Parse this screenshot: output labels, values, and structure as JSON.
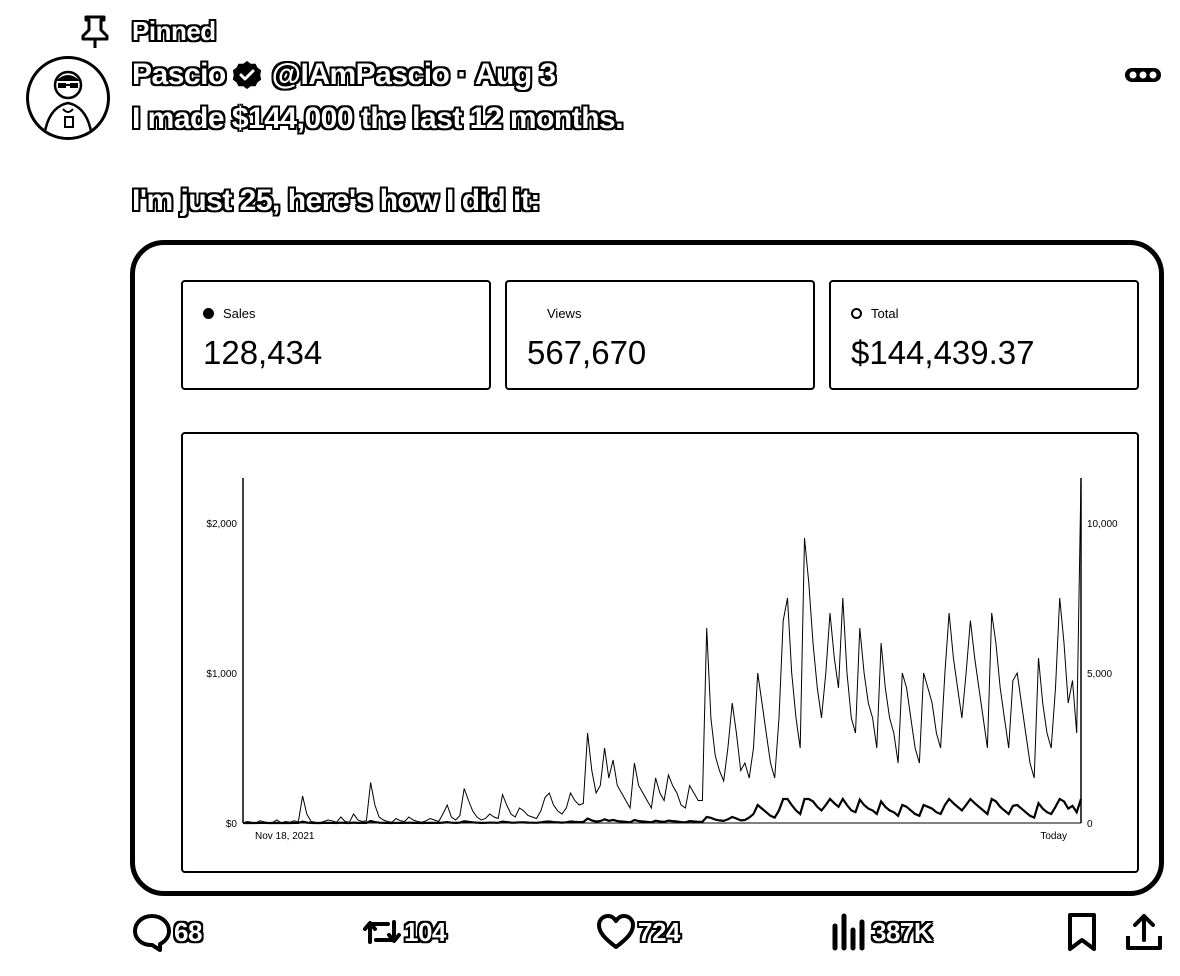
{
  "header": {
    "pinned_label": "Pinned"
  },
  "author": {
    "name": "Pascio",
    "handle": "@IAmPascio",
    "separator": "·",
    "date": "Aug 3",
    "verified": true
  },
  "tweet": {
    "line1": "I made $144,000 the last 12 months.",
    "line2": "I'm just 25, here's how I did it:"
  },
  "stats": [
    {
      "label": "Sales",
      "value": "128,434",
      "marker": "filled-dot"
    },
    {
      "label": "Views",
      "value": "567,670",
      "marker": "none"
    },
    {
      "label": "Total",
      "value": "$144,439.37",
      "marker": "hollow-dot"
    }
  ],
  "chart_data": {
    "type": "line",
    "x_start_label": "Nov 18, 2021",
    "x_end_label": "Today",
    "y_left_ticks": [
      "$0",
      "$1,000",
      "$2,000"
    ],
    "y_right_ticks": [
      "0",
      "5,000",
      "10,000"
    ],
    "ylim_left": [
      0,
      2300
    ],
    "ylim_right": [
      0,
      11500
    ],
    "grid": false,
    "series": [
      {
        "values": [
          0,
          10,
          5,
          0,
          15,
          8,
          0,
          5,
          20,
          0,
          10,
          5,
          15,
          8,
          180,
          60,
          10,
          5,
          0,
          10,
          20,
          15,
          5,
          40,
          10,
          5,
          60,
          20,
          10,
          15,
          270,
          120,
          40,
          20,
          10,
          5,
          30,
          15,
          10,
          40,
          20,
          10,
          5,
          15,
          30,
          20,
          10,
          60,
          120,
          40,
          20,
          50,
          230,
          150,
          80,
          40,
          20,
          30,
          60,
          40,
          30,
          190,
          120,
          60,
          40,
          100,
          80,
          50,
          40,
          30,
          80,
          170,
          200,
          120,
          80,
          60,
          100,
          200,
          150,
          120,
          130,
          600,
          350,
          200,
          250,
          500,
          300,
          420,
          250,
          200,
          150,
          100,
          400,
          250,
          200,
          150,
          100,
          300,
          200,
          150,
          320,
          250,
          200,
          120,
          100,
          250,
          200,
          150,
          150,
          1300,
          700,
          450,
          350,
          280,
          500,
          800,
          600,
          350,
          400,
          300,
          500,
          1000,
          800,
          600,
          400,
          300,
          700,
          1350,
          1500,
          1000,
          700,
          500,
          1900,
          1600,
          1200,
          900,
          700,
          1000,
          1400,
          1100,
          900,
          1500,
          1000,
          700,
          600,
          1300,
          1000,
          800,
          700,
          500,
          1200,
          900,
          700,
          600,
          400,
          1000,
          900,
          700,
          500,
          400,
          1000,
          900,
          800,
          600,
          500,
          1000,
          1400,
          1100,
          900,
          700,
          1000,
          1350,
          1100,
          900,
          700,
          500,
          1400,
          1200,
          900,
          700,
          500,
          950,
          1000,
          800,
          600,
          400,
          300,
          1100,
          800,
          600,
          500,
          900,
          1500,
          1200,
          800,
          950,
          600,
          2300
        ]
      }
    ]
  },
  "actions": [
    {
      "name": "reply",
      "count": "68"
    },
    {
      "name": "retweet",
      "count": "104"
    },
    {
      "name": "like",
      "count": "724"
    },
    {
      "name": "views",
      "count": "387K"
    }
  ]
}
